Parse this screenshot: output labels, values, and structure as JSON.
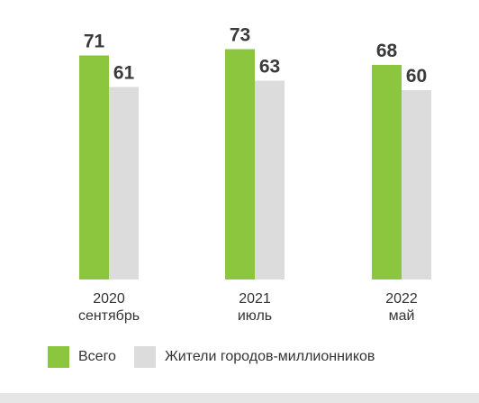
{
  "chart_data": {
    "type": "bar",
    "categories": [
      [
        "2020",
        "сентябрь"
      ],
      [
        "2021",
        "июль"
      ],
      [
        "2022",
        "май"
      ]
    ],
    "series": [
      {
        "name": "Всего",
        "color": "#8cc63f",
        "values": [
          71,
          73,
          68
        ]
      },
      {
        "name": "Жители городов-миллионников",
        "color": "#dcdcdc",
        "values": [
          61,
          63,
          60
        ]
      }
    ],
    "title": "",
    "xlabel": "",
    "ylabel": "",
    "ylim": [
      0,
      73
    ],
    "grid": false,
    "legend_position": "bottom-left",
    "data_labels": true
  }
}
